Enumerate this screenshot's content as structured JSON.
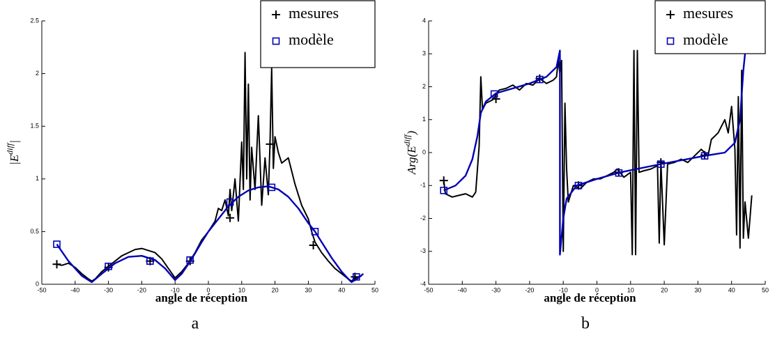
{
  "chart_data": [
    {
      "type": "line",
      "xlabel": "angle de réception",
      "ylabel": {
        "prefix": "|",
        "base": "E",
        "sup": "diff",
        "suffix": "|"
      },
      "caption": "a",
      "xlim": [
        -50,
        50
      ],
      "xticks": [
        -50,
        -40,
        -30,
        -20,
        -10,
        0,
        10,
        20,
        30,
        40,
        50
      ],
      "ylim": [
        0,
        2.5
      ],
      "yticks": [
        0,
        0.5,
        1,
        1.5,
        2,
        2.5
      ],
      "legend": "upper right",
      "series": [
        {
          "name": "mesures",
          "color": "#000000",
          "marker": "plus",
          "x": [
            -45.5,
            -44,
            -42,
            -40,
            -38,
            -36,
            -35,
            -34,
            -32,
            -30,
            -28,
            -26,
            -24,
            -22,
            -20,
            -18,
            -16,
            -14,
            -12,
            -10,
            -8,
            -6,
            -4,
            -2,
            0,
            1,
            2,
            3,
            4,
            5,
            6,
            6.5,
            7,
            8,
            9,
            10,
            10.5,
            11,
            11.5,
            12,
            12.5,
            13,
            14,
            15,
            16,
            17,
            18,
            18.5,
            19,
            19.5,
            20,
            21,
            22,
            24,
            26,
            28,
            30,
            31,
            32,
            34,
            36,
            38,
            40,
            42,
            43,
            44,
            46
          ],
          "values": [
            0.19,
            0.18,
            0.2,
            0.16,
            0.1,
            0.05,
            0.03,
            0.05,
            0.12,
            0.17,
            0.22,
            0.27,
            0.3,
            0.33,
            0.34,
            0.32,
            0.3,
            0.24,
            0.15,
            0.06,
            0.12,
            0.2,
            0.3,
            0.42,
            0.5,
            0.55,
            0.6,
            0.72,
            0.7,
            0.8,
            0.65,
            0.9,
            0.7,
            1.0,
            0.6,
            1.35,
            0.9,
            2.2,
            1.0,
            1.9,
            0.8,
            1.3,
            0.9,
            1.6,
            0.75,
            1.2,
            0.85,
            1.33,
            2.05,
            1.1,
            1.4,
            1.25,
            1.15,
            1.2,
            0.95,
            0.75,
            0.62,
            0.5,
            0.4,
            0.3,
            0.22,
            0.15,
            0.1,
            0.05,
            0.03,
            0.06,
            0.08
          ],
          "marker_x": [
            -45.5,
            -30,
            -17.5,
            -5.5,
            6.5,
            18.5,
            31.5,
            44
          ],
          "marker_values": [
            0.19,
            0.16,
            0.22,
            0.22,
            0.63,
            1.33,
            0.37,
            0.07
          ]
        },
        {
          "name": "modèle",
          "color": "#0000b4",
          "marker": "square",
          "x": [
            -45.5,
            -42,
            -38,
            -35,
            -32,
            -28,
            -24,
            -20,
            -16,
            -13,
            -10,
            -8,
            -5,
            -2,
            0,
            3,
            6,
            9,
            12,
            15,
            18,
            21,
            24,
            27,
            30,
            32,
            34,
            37,
            40,
            42,
            43,
            45,
            46.5
          ],
          "values": [
            0.38,
            0.22,
            0.08,
            0.02,
            0.1,
            0.2,
            0.26,
            0.27,
            0.23,
            0.15,
            0.04,
            0.1,
            0.24,
            0.4,
            0.5,
            0.62,
            0.74,
            0.83,
            0.89,
            0.92,
            0.93,
            0.9,
            0.83,
            0.72,
            0.58,
            0.5,
            0.4,
            0.25,
            0.12,
            0.05,
            0.02,
            0.06,
            0.1
          ],
          "marker_x": [
            -45.5,
            -30,
            -17.5,
            -5.5,
            6.5,
            19,
            32,
            44.4
          ],
          "marker_values": [
            0.38,
            0.17,
            0.22,
            0.23,
            0.78,
            0.92,
            0.5,
            0.07
          ]
        }
      ]
    },
    {
      "type": "line",
      "xlabel": "angle de réception",
      "ylabel": {
        "prefix": "Arg(",
        "base": "E",
        "sup": "diff",
        "suffix": ")"
      },
      "caption": "b",
      "xlim": [
        -50,
        50
      ],
      "xticks": [
        -50,
        -40,
        -30,
        -20,
        -10,
        0,
        10,
        20,
        30,
        40,
        50
      ],
      "ylim": [
        -4,
        4
      ],
      "yticks": [
        -4,
        -3,
        -2,
        -1,
        0,
        1,
        2,
        3,
        4
      ],
      "legend": "upper right",
      "series": [
        {
          "name": "mesures",
          "color": "#000000",
          "marker": "plus",
          "x": [
            -45.5,
            -45,
            -43,
            -41,
            -39,
            -37,
            -36,
            -35,
            -34.5,
            -34,
            -33,
            -31,
            -29,
            -27,
            -25,
            -23,
            -21,
            -19,
            -17,
            -15,
            -13,
            -12,
            -11.5,
            -11,
            -10.5,
            -10,
            -9.5,
            -9,
            -8.5,
            -7,
            -5,
            -3,
            -1,
            1,
            3,
            5,
            6,
            8,
            10,
            10.5,
            11,
            11.5,
            12,
            12.5,
            14,
            16,
            18,
            18.5,
            19,
            20,
            21,
            23,
            25,
            27,
            29,
            31,
            33,
            34,
            36,
            37,
            38,
            39,
            40,
            41,
            41.5,
            42,
            42.5,
            43,
            43.5,
            44,
            45,
            46
          ],
          "values": [
            -0.85,
            -1.25,
            -1.35,
            -1.3,
            -1.25,
            -1.35,
            -1.2,
            0.2,
            2.3,
            1.3,
            1.5,
            1.6,
            1.9,
            1.95,
            2.05,
            1.9,
            2.1,
            2.05,
            2.25,
            2.1,
            2.2,
            2.3,
            2.8,
            2.4,
            2.8,
            -3.0,
            1.5,
            -0.5,
            -1.5,
            -1.0,
            -1.1,
            -0.9,
            -0.8,
            -0.8,
            -0.7,
            -0.6,
            -0.5,
            -0.75,
            -0.6,
            -3.1,
            3.1,
            -3.1,
            3.1,
            -0.6,
            -0.55,
            -0.5,
            -0.4,
            -2.75,
            -0.3,
            -2.8,
            -0.35,
            -0.3,
            -0.2,
            -0.3,
            -0.1,
            0.1,
            -0.1,
            0.4,
            0.6,
            0.8,
            1.0,
            0.6,
            1.4,
            0.1,
            -2.5,
            1.7,
            -2.9,
            2.5,
            -2.6,
            -1.5,
            -2.6,
            -1.3
          ],
          "marker_x": [
            -45.5,
            -30,
            -17,
            -5.5,
            6.5,
            19,
            32
          ],
          "marker_values": [
            -0.85,
            1.63,
            2.25,
            -1.0,
            -0.6,
            -0.3,
            -0.08
          ]
        },
        {
          "name": "modèle",
          "color": "#0000b4",
          "marker": "square",
          "x": [
            -45.5,
            -42,
            -39,
            -37,
            -35.5,
            -34.5,
            -33,
            -30,
            -25,
            -20,
            -15,
            -12,
            -11,
            -11,
            -10,
            -9,
            -6,
            0,
            7,
            19,
            32,
            38,
            41,
            42.5,
            43.5,
            44
          ],
          "values": [
            -1.15,
            -1.0,
            -0.7,
            -0.2,
            0.5,
            1.2,
            1.55,
            1.8,
            1.95,
            2.1,
            2.3,
            2.6,
            3.1,
            -3.1,
            -2.0,
            -1.4,
            -1.0,
            -0.8,
            -0.6,
            -0.35,
            -0.1,
            0.0,
            0.3,
            1.0,
            2.5,
            3.0
          ],
          "marker_x": [
            -45.5,
            -30.5,
            -17,
            -5.5,
            6.5,
            19,
            32
          ],
          "marker_values": [
            -1.15,
            1.78,
            2.22,
            -1.0,
            -0.62,
            -0.35,
            -0.1
          ]
        }
      ]
    }
  ]
}
